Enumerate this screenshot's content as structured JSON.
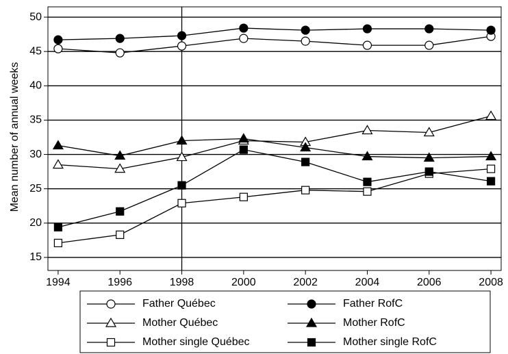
{
  "chart_data": {
    "type": "line",
    "y_label": "Mean number of annual weeks",
    "x": [
      1994,
      1996,
      1998,
      2000,
      2002,
      2004,
      2006,
      2008
    ],
    "xlim": [
      1993.67,
      2008.33
    ],
    "xticks": [
      1994,
      1996,
      1998,
      2000,
      2002,
      2004,
      2006,
      2008
    ],
    "ylim": [
      13.1,
      51.5
    ],
    "yticks": [
      15,
      20,
      25,
      30,
      35,
      40,
      45,
      50
    ],
    "grid": true,
    "vline": 1998,
    "legend": "bottom",
    "series": [
      {
        "name": "Father Québec",
        "color": "#000000",
        "marker": "circle",
        "filled": false,
        "values": [
          45.4,
          44.8,
          45.8,
          46.9,
          46.5,
          45.9,
          45.9,
          47.2
        ]
      },
      {
        "name": "Father RofC",
        "color": "#000000",
        "marker": "circle",
        "filled": true,
        "values": [
          46.7,
          46.9,
          47.3,
          48.4,
          48.1,
          48.3,
          48.3,
          48.1
        ]
      },
      {
        "name": "Mother Québec",
        "color": "#000000",
        "marker": "triangle",
        "filled": false,
        "values": [
          28.5,
          27.9,
          29.6,
          32.0,
          31.8,
          33.5,
          33.2,
          35.6
        ]
      },
      {
        "name": "Mother RofC",
        "color": "#000000",
        "marker": "triangle",
        "filled": true,
        "values": [
          31.3,
          29.8,
          32.0,
          32.3,
          31.0,
          29.7,
          29.5,
          29.7
        ]
      },
      {
        "name": "Mother single Québec",
        "color": "#000000",
        "marker": "square",
        "filled": false,
        "values": [
          17.1,
          18.3,
          22.9,
          23.8,
          24.8,
          24.6,
          27.2,
          27.9
        ]
      },
      {
        "name": "Mother single RofC",
        "color": "#000000",
        "marker": "square",
        "filled": true,
        "values": [
          19.4,
          21.7,
          25.5,
          30.7,
          28.9,
          26.0,
          27.5,
          26.1
        ]
      }
    ]
  }
}
